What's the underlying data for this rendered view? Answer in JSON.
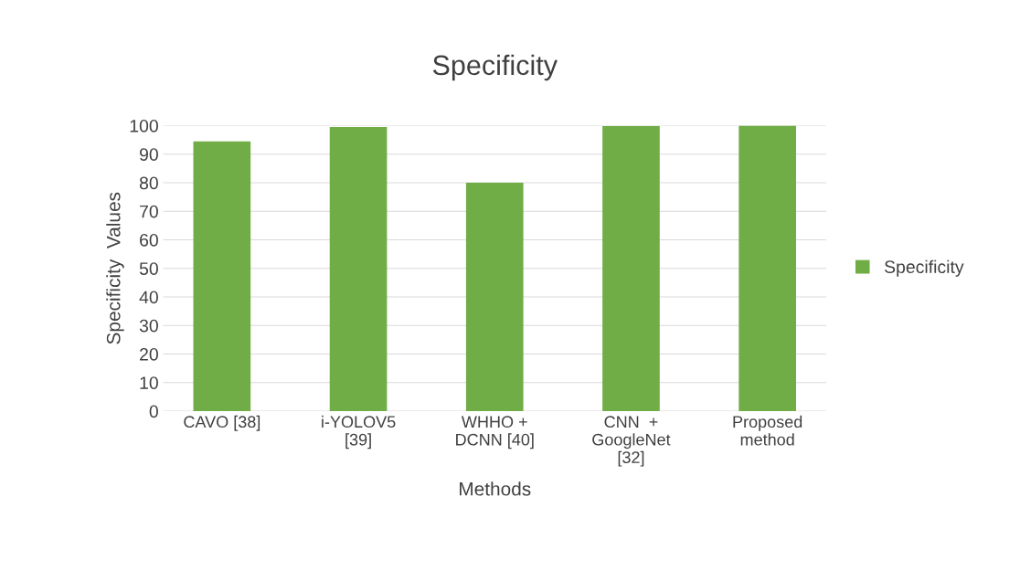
{
  "chart_data": {
    "type": "bar",
    "title": "Specificity",
    "xlabel": "Methods",
    "ylabel": "Specificity  Values",
    "categories": [
      "CAVO [38]",
      "i-YOLOV5\n[39]",
      "WHHO +\nDCNN [40]",
      "CNN  +\nGoogleNet\n[32]",
      "Proposed\nmethod"
    ],
    "series": [
      {
        "name": "Specificity",
        "color": "#70ad47",
        "values": [
          94.5,
          99.5,
          80,
          99.8,
          100
        ]
      }
    ],
    "ylim": [
      0,
      100
    ],
    "yticks": [
      0,
      10,
      20,
      30,
      40,
      50,
      60,
      70,
      80,
      90,
      100
    ],
    "grid": "y",
    "legend": "right"
  }
}
